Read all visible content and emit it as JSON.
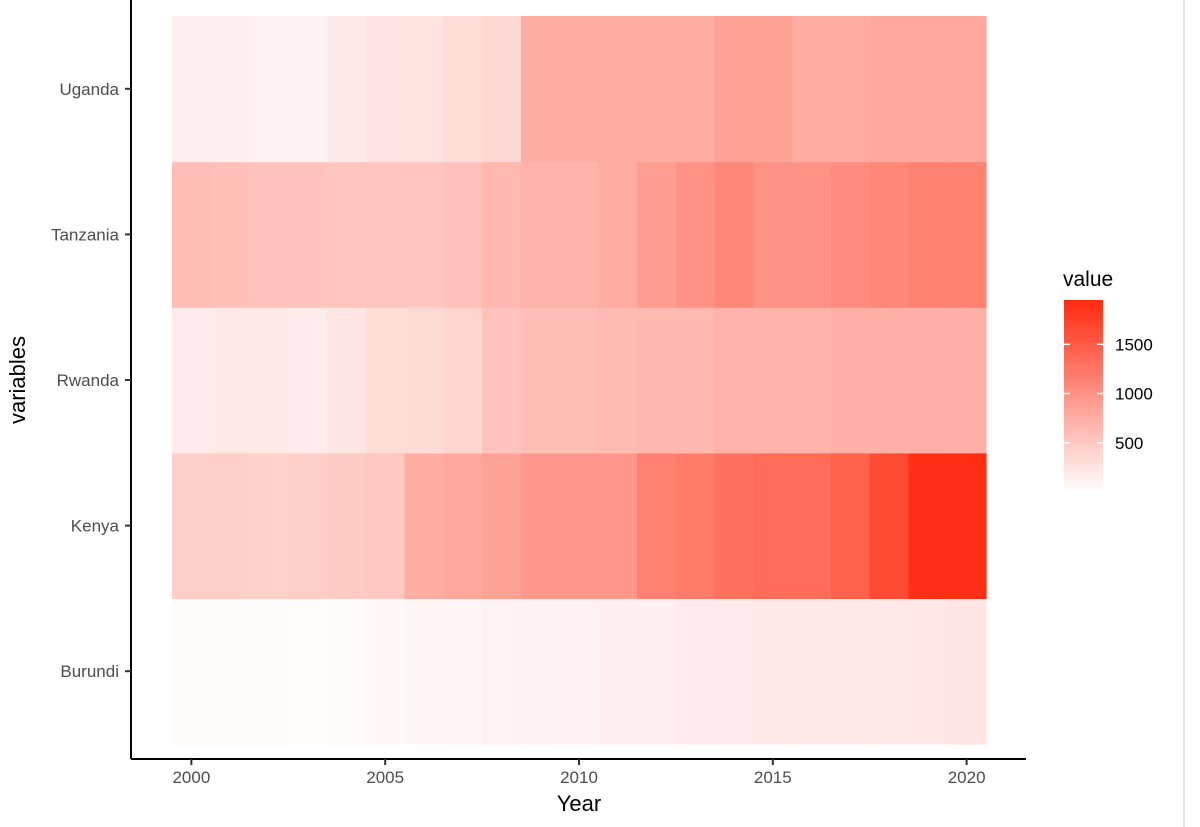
{
  "chart_data": {
    "type": "heatmap",
    "xlabel": "Year",
    "ylabel": "variables",
    "x": [
      2000,
      2001,
      2002,
      2003,
      2004,
      2005,
      2006,
      2007,
      2008,
      2009,
      2010,
      2011,
      2012,
      2013,
      2014,
      2015,
      2016,
      2017,
      2018,
      2019,
      2020
    ],
    "x_ticks": [
      "2000",
      "2005",
      "2010",
      "2015",
      "2020"
    ],
    "xlim": [
      1999.5,
      2020.5
    ],
    "y_categories": [
      "Burundi",
      "Kenya",
      "Rwanda",
      "Tanzania",
      "Uganda"
    ],
    "series": [
      {
        "name": "Burundi",
        "values": [
          40,
          40,
          35,
          30,
          35,
          60,
          70,
          90,
          110,
          120,
          130,
          140,
          150,
          170,
          180,
          200,
          200,
          200,
          200,
          210,
          230
        ]
      },
      {
        "name": "Kenya",
        "values": [
          450,
          450,
          420,
          450,
          480,
          500,
          750,
          800,
          850,
          950,
          950,
          950,
          1150,
          1200,
          1300,
          1350,
          1350,
          1450,
          1650,
          1900,
          1900
        ]
      },
      {
        "name": "Rwanda",
        "values": [
          180,
          200,
          200,
          170,
          230,
          300,
          330,
          380,
          550,
          600,
          600,
          620,
          650,
          650,
          700,
          700,
          700,
          720,
          720,
          730,
          720
        ]
      },
      {
        "name": "Tanzania",
        "values": [
          600,
          580,
          550,
          550,
          520,
          520,
          520,
          560,
          650,
          700,
          700,
          750,
          900,
          1000,
          1100,
          1000,
          1000,
          1050,
          1100,
          1150,
          1150
        ]
      },
      {
        "name": "Uganda",
        "values": [
          150,
          150,
          120,
          120,
          200,
          240,
          260,
          320,
          360,
          750,
          750,
          750,
          750,
          750,
          850,
          850,
          750,
          750,
          800,
          800,
          800
        ]
      }
    ],
    "legend": {
      "title": "value",
      "breaks": [
        500,
        1000,
        1500
      ],
      "labels": [
        "500",
        "1000",
        "1500"
      ],
      "range": [
        0,
        1950
      ],
      "low_color": "#ffffff",
      "high_color": "#ff2a0f",
      "placement": "right"
    },
    "grid": false
  }
}
